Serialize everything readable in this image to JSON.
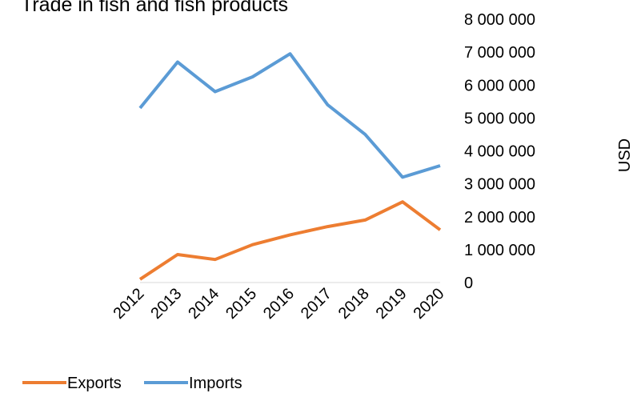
{
  "chart_data": {
    "type": "line",
    "title": "Trade in fish and fish products",
    "xlabel": "",
    "ylabel": "USD",
    "categories": [
      "2012",
      "2013",
      "2014",
      "2015",
      "2016",
      "2017",
      "2018",
      "2019",
      "2020"
    ],
    "series": [
      {
        "name": "Exports",
        "color": "#ED7D31",
        "values": [
          100000,
          850000,
          700000,
          1150000,
          1450000,
          1700000,
          1900000,
          2450000,
          1600000
        ]
      },
      {
        "name": "Imports",
        "color": "#5B9BD5",
        "values": [
          5300000,
          6700000,
          5800000,
          6250000,
          6950000,
          5400000,
          4500000,
          3200000,
          3550000
        ]
      }
    ],
    "ylim": [
      0,
      8000000
    ],
    "yticks": [
      "0",
      "1 000 000",
      "2 000 000",
      "3 000 000",
      "4 000 000",
      "5 000 000",
      "6 000 000",
      "7 000 000",
      "8 000 000"
    ],
    "y_axis_side": "right",
    "grid": false,
    "legend_position": "bottom-left"
  }
}
